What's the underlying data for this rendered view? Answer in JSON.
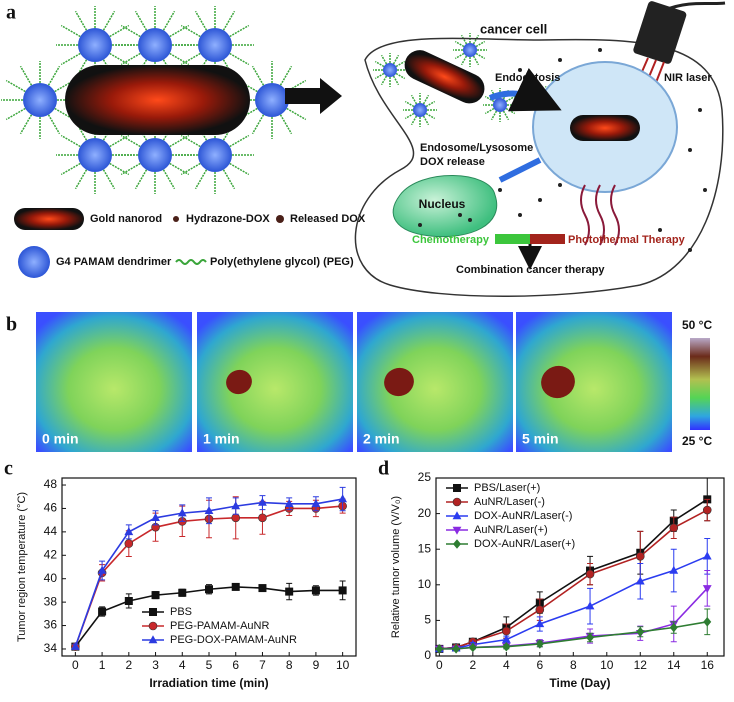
{
  "panel_a": {
    "label": "a",
    "cell": "cancer cell",
    "laser": "NIR laser",
    "endocytosis": "Endocytosis",
    "endosome": "Endosome/Lysosome",
    "release": "DOX release",
    "nucleus": "Nucleus",
    "chemo": "Chemotherapy",
    "photo": "Photothermal Therapy",
    "combo": "Combination cancer therapy",
    "legend": [
      "Gold nanorod",
      "Hydrazone-DOX",
      "Released DOX",
      "G4 PAMAM dendrimer",
      "Poly(ethylene glycol) (PEG)"
    ]
  },
  "panel_b": {
    "label": "b",
    "frames": [
      "0 min",
      "1 min",
      "2 min",
      "5 min"
    ],
    "scale_max": "50 °C",
    "scale_min": "25 °C"
  },
  "chart_data": [
    {
      "type": "line",
      "label": "c",
      "x_label": "Irradiation time (min)",
      "y_label": "Tumor region temperature (°C)",
      "x": [
        0,
        1,
        2,
        3,
        4,
        5,
        6,
        7,
        8,
        9,
        10
      ],
      "xlim": [
        -0.5,
        10.5
      ],
      "xticks": [
        0,
        1,
        2,
        3,
        4,
        5,
        6,
        7,
        8,
        9,
        10
      ],
      "ylim": [
        33.4,
        48.6
      ],
      "yticks": [
        34,
        36,
        38,
        40,
        42,
        44,
        46,
        48
      ],
      "legend": "lower center",
      "series": [
        {
          "name": "PBS",
          "color": "#111111",
          "marker": "square",
          "values": [
            34.2,
            37.2,
            38.1,
            38.6,
            38.8,
            39.1,
            39.3,
            39.2,
            38.9,
            39.0,
            39.0
          ],
          "errors": [
            0.2,
            0.4,
            0.6,
            0.3,
            0.3,
            0.4,
            0.2,
            0.2,
            0.7,
            0.4,
            0.8
          ]
        },
        {
          "name": "PEG-PAMAM-AuNR",
          "color": "#c8282b",
          "marker": "circle",
          "values": [
            34.2,
            40.5,
            43.0,
            44.4,
            44.9,
            45.1,
            45.2,
            45.2,
            46.0,
            46.0,
            46.2
          ],
          "errors": [
            0.2,
            0.7,
            1.1,
            1.2,
            1.3,
            1.6,
            1.8,
            1.4,
            0.6,
            0.7,
            0.6
          ]
        },
        {
          "name": "PEG-DOX-PAMAM-AuNR",
          "color": "#2c3be0",
          "marker": "triangle-up",
          "values": [
            34.2,
            40.7,
            44.0,
            45.2,
            45.6,
            45.8,
            46.2,
            46.5,
            46.4,
            46.4,
            46.8
          ],
          "errors": [
            0.2,
            0.8,
            0.6,
            0.6,
            0.7,
            1.1,
            0.7,
            0.6,
            0.5,
            0.6,
            1.0
          ]
        }
      ]
    },
    {
      "type": "line",
      "label": "d",
      "x_label": "Time (Day)",
      "y_label": "Relative tumor volume (V/V₀)",
      "x": [
        0,
        1,
        2,
        4,
        6,
        9,
        12,
        14,
        16
      ],
      "xlim": [
        -0.2,
        17
      ],
      "xticks": [
        0,
        2,
        4,
        6,
        8,
        10,
        12,
        14,
        16
      ],
      "ylim": [
        0,
        25
      ],
      "yticks": [
        0,
        5,
        10,
        15,
        20,
        25
      ],
      "legend": "upper left",
      "series": [
        {
          "name": "PBS/Laser(+)",
          "color": "#111111",
          "marker": "square",
          "values": [
            1,
            1.2,
            2,
            4,
            7.5,
            12,
            14.5,
            19,
            22
          ],
          "errors": [
            0,
            0.2,
            0.3,
            1.5,
            1.5,
            2,
            3,
            1.5,
            3
          ]
        },
        {
          "name": "AuNR/Laser(-)",
          "color": "#b22222",
          "marker": "circle",
          "values": [
            1,
            1.2,
            2,
            3.5,
            6.5,
            11.5,
            14,
            18,
            20.5
          ],
          "errors": [
            0,
            0.2,
            0.3,
            1.0,
            1.5,
            1.5,
            3.5,
            1.5,
            1.5
          ]
        },
        {
          "name": "DOX-AuNR/Laser(-)",
          "color": "#2b3cf0",
          "marker": "triangle-up",
          "values": [
            1,
            1.1,
            1.6,
            2.3,
            4.5,
            7,
            10.5,
            12,
            14
          ],
          "errors": [
            0,
            0.2,
            0.3,
            0.5,
            1.0,
            2.5,
            2.5,
            3,
            2.5
          ]
        },
        {
          "name": "AuNR/Laser(+)",
          "color": "#8a2be2",
          "marker": "triangle-down",
          "values": [
            1,
            1,
            1.2,
            1.4,
            1.8,
            2.8,
            3.2,
            4.5,
            9.5
          ],
          "errors": [
            0,
            0.1,
            0.2,
            0.3,
            0.5,
            1.0,
            1.0,
            2.5,
            2.5
          ]
        },
        {
          "name": "DOX-AuNR/Laser(+)",
          "color": "#2e7d32",
          "marker": "diamond",
          "values": [
            1,
            1,
            1.2,
            1.3,
            1.7,
            2.6,
            3.4,
            4,
            4.8
          ],
          "errors": [
            0,
            0.1,
            0.2,
            0.3,
            0.4,
            0.6,
            0.7,
            0.8,
            1.8
          ]
        }
      ]
    }
  ]
}
